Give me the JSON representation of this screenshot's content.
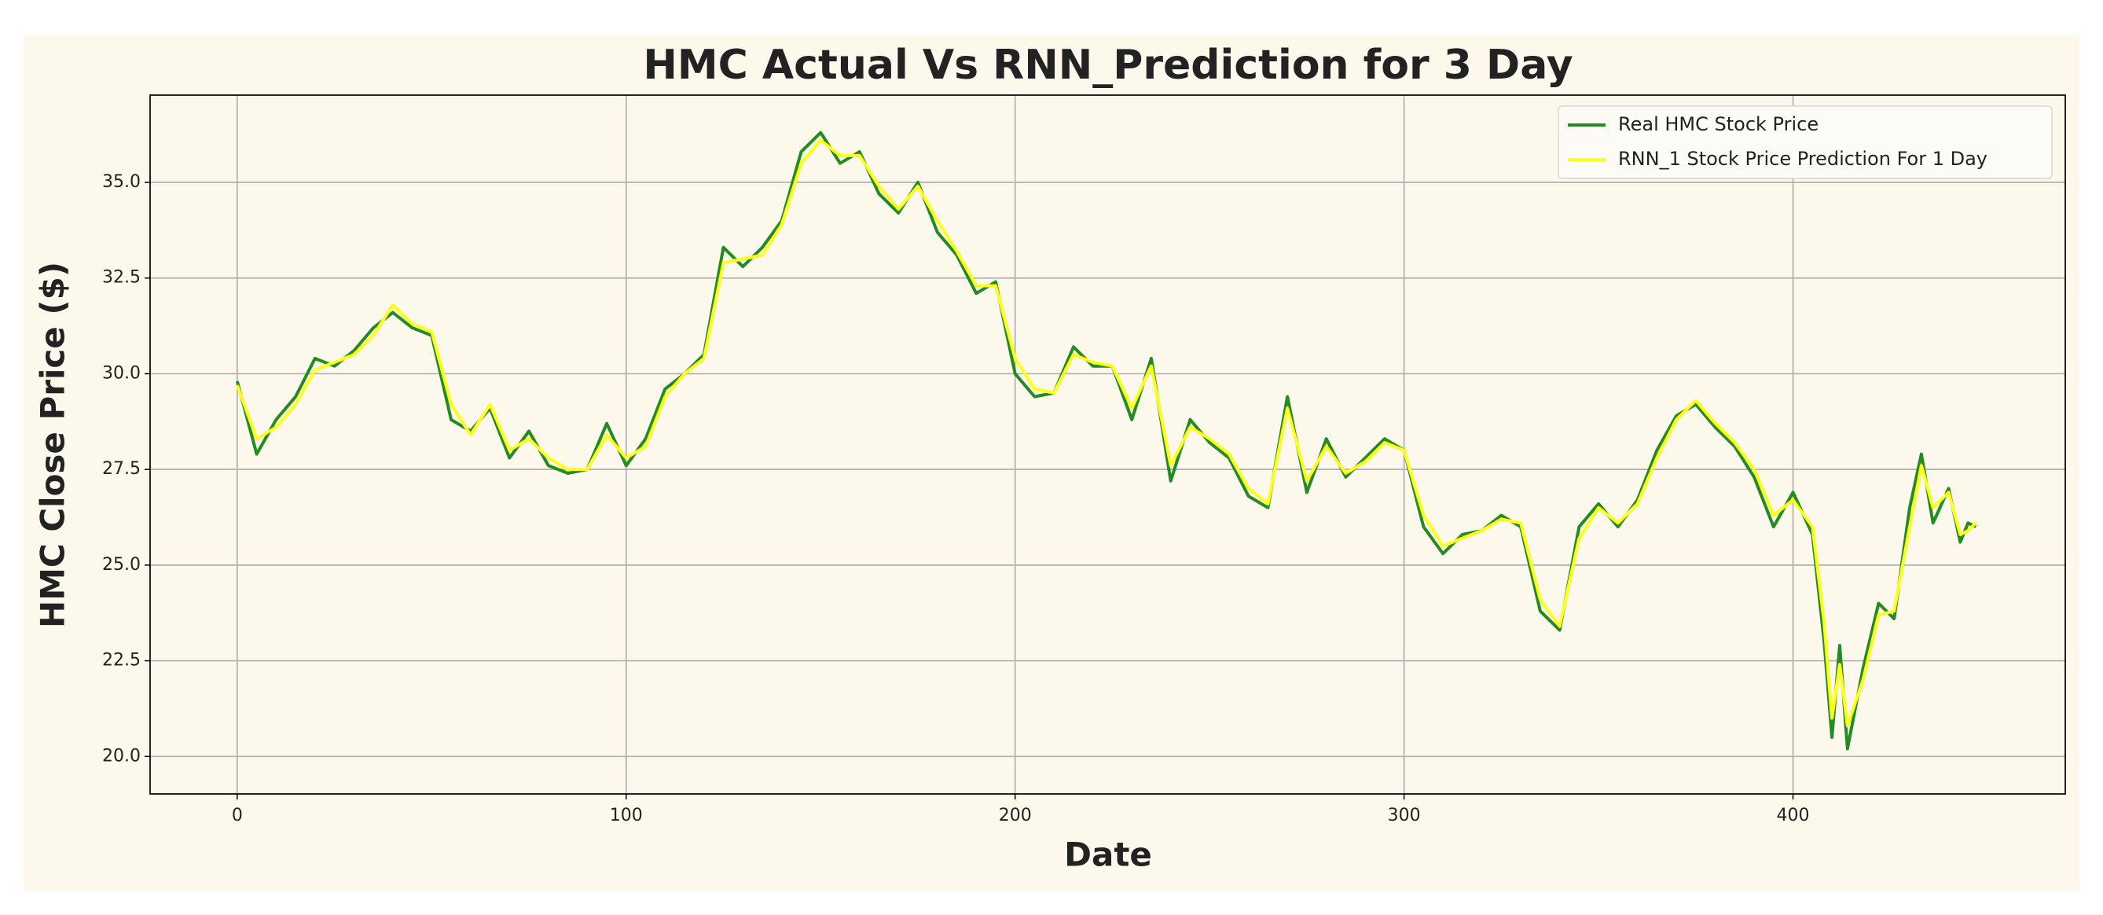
{
  "chart_data": {
    "type": "line",
    "title": "HMC Actual Vs RNN_Prediction for 3 Day",
    "x_label": "Date",
    "y_label": "HMC Close Price ($)",
    "x": [
      0,
      5,
      10,
      15,
      20,
      25,
      30,
      35,
      40,
      45,
      50,
      55,
      60,
      65,
      70,
      75,
      80,
      85,
      90,
      95,
      100,
      105,
      110,
      115,
      120,
      125,
      130,
      135,
      140,
      145,
      150,
      155,
      160,
      165,
      170,
      175,
      180,
      185,
      190,
      195,
      200,
      205,
      210,
      215,
      220,
      225,
      230,
      235,
      240,
      245,
      250,
      255,
      260,
      265,
      270,
      275,
      280,
      285,
      290,
      295,
      300,
      305,
      310,
      315,
      320,
      325,
      330,
      335,
      340,
      345,
      350,
      355,
      360,
      365,
      370,
      375,
      380,
      385,
      390,
      395,
      400,
      405,
      408,
      410,
      412,
      414,
      418,
      422,
      426,
      430,
      433,
      436,
      440,
      443,
      445,
      447
    ],
    "series": [
      {
        "name": "Real HMC Stock Price",
        "color": "#228b22",
        "values": [
          29.8,
          27.9,
          28.8,
          29.4,
          30.4,
          30.2,
          30.6,
          31.2,
          31.6,
          31.2,
          31.0,
          28.8,
          28.5,
          29.1,
          27.8,
          28.5,
          27.6,
          27.4,
          27.5,
          28.7,
          27.6,
          28.3,
          29.6,
          30.0,
          30.5,
          33.3,
          32.8,
          33.3,
          34.0,
          35.8,
          36.3,
          35.5,
          35.8,
          34.7,
          34.2,
          35.0,
          33.7,
          33.1,
          32.1,
          32.4,
          30.0,
          29.4,
          29.5,
          30.7,
          30.2,
          30.2,
          28.8,
          30.4,
          27.2,
          28.8,
          28.2,
          27.8,
          26.8,
          26.5,
          29.4,
          26.9,
          28.3,
          27.3,
          27.8,
          28.3,
          28.0,
          26.0,
          25.3,
          25.8,
          25.9,
          26.3,
          26.0,
          23.8,
          23.3,
          26.0,
          26.6,
          26.0,
          26.7,
          28.0,
          28.9,
          29.2,
          28.6,
          28.1,
          27.3,
          26.0,
          26.9,
          25.8,
          23.0,
          20.5,
          22.9,
          20.2,
          22.3,
          24.0,
          23.6,
          26.5,
          27.9,
          26.1,
          27.0,
          25.6,
          26.1,
          26.0
        ]
      },
      {
        "name": "RNN_1 Stock Price Prediction For 1 Day",
        "color": "#ffff1a",
        "values": [
          29.7,
          28.3,
          28.6,
          29.2,
          30.1,
          30.3,
          30.5,
          31.0,
          31.8,
          31.3,
          31.1,
          29.2,
          28.4,
          29.2,
          28.0,
          28.3,
          27.8,
          27.5,
          27.5,
          28.4,
          27.8,
          28.1,
          29.4,
          30.0,
          30.4,
          32.9,
          33.0,
          33.1,
          33.9,
          35.5,
          36.1,
          35.7,
          35.7,
          34.9,
          34.3,
          34.9,
          34.0,
          33.2,
          32.3,
          32.3,
          30.4,
          29.6,
          29.5,
          30.5,
          30.3,
          30.2,
          29.1,
          30.2,
          27.6,
          28.6,
          28.3,
          27.9,
          27.0,
          26.6,
          29.1,
          27.2,
          28.1,
          27.4,
          27.7,
          28.2,
          28.0,
          26.3,
          25.5,
          25.7,
          25.9,
          26.2,
          26.1,
          24.1,
          23.4,
          25.7,
          26.5,
          26.1,
          26.6,
          27.8,
          28.8,
          29.3,
          28.7,
          28.2,
          27.5,
          26.3,
          26.7,
          26.0,
          23.5,
          21.0,
          22.4,
          20.8,
          22.0,
          23.7,
          23.8,
          26.0,
          27.6,
          26.5,
          26.9,
          25.8,
          25.9,
          26.1
        ]
      }
    ],
    "xlim": [
      -22.4,
      470
    ],
    "ylim": [
      19.02,
      37.28
    ],
    "xticks": [
      0,
      100,
      200,
      300,
      400
    ],
    "yticks": [
      {
        "value": 20,
        "label": "20.0"
      },
      {
        "value": 22.5,
        "label": "22.5"
      },
      {
        "value": 25,
        "label": "25.0"
      },
      {
        "value": 27.5,
        "label": "27.5"
      },
      {
        "value": 30,
        "label": "30.0"
      },
      {
        "value": 32.5,
        "label": "32.5"
      },
      {
        "value": 35,
        "label": "35.0"
      }
    ],
    "grid": true,
    "legend": "upper right"
  }
}
